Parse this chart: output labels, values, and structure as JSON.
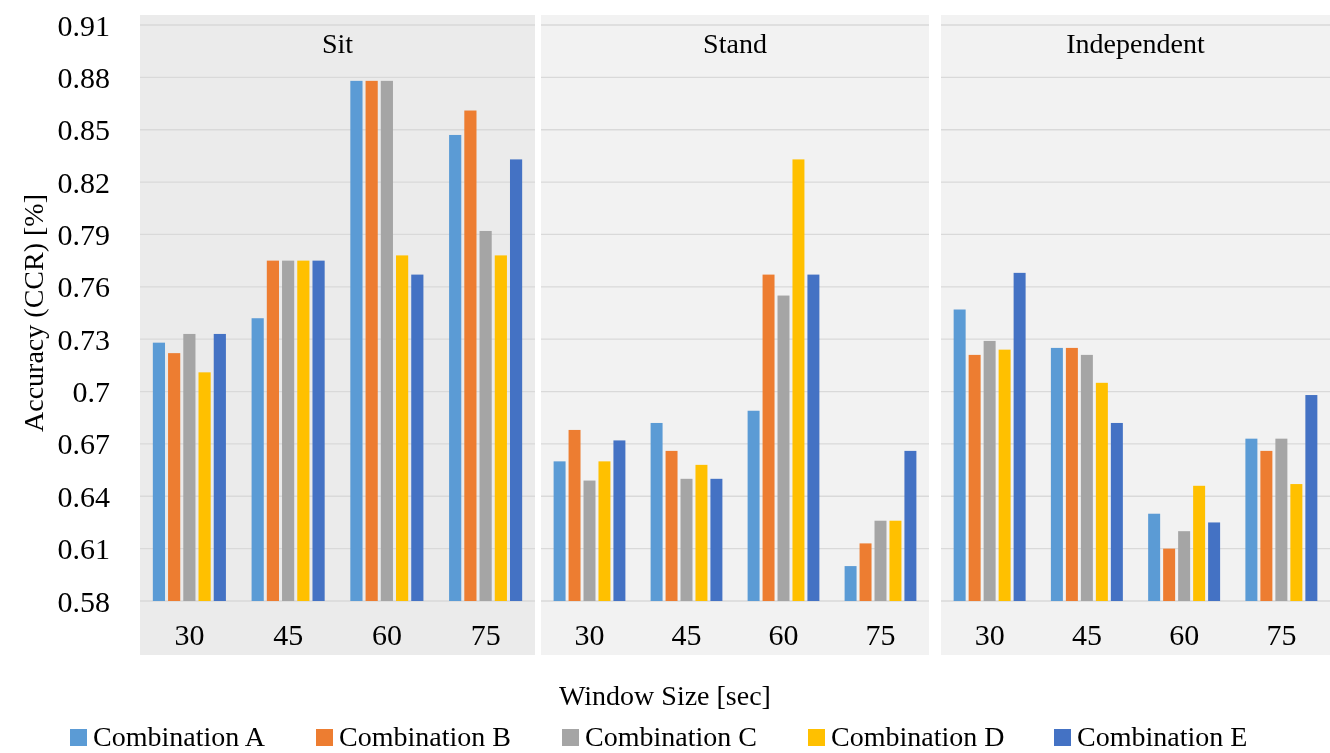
{
  "chart_data": [
    {
      "type": "bar",
      "title": "Sit",
      "ylabel": "Accuracy (CCR) [%]",
      "categories": [
        "30",
        "45",
        "60",
        "75"
      ],
      "ylim": [
        0.58,
        0.91
      ],
      "yticks": [
        0.58,
        0.61,
        0.64,
        0.67,
        0.7,
        0.73,
        0.76,
        0.79,
        0.82,
        0.85,
        0.88,
        0.91
      ],
      "grid": "y",
      "tick_labels": "xy",
      "series": [
        {
          "color": "#5b9bd5",
          "values": [
            0.728,
            0.742,
            0.878,
            0.847
          ]
        },
        {
          "color": "#ed7d31",
          "values": [
            0.722,
            0.775,
            0.878,
            0.861
          ]
        },
        {
          "color": "#a5a5a5",
          "values": [
            0.733,
            0.775,
            0.878,
            0.792
          ]
        },
        {
          "color": "#ffc000",
          "values": [
            0.711,
            0.775,
            0.778,
            0.778
          ]
        },
        {
          "color": "#4472c4",
          "values": [
            0.733,
            0.775,
            0.767,
            0.833
          ]
        }
      ]
    },
    {
      "type": "bar",
      "title": "Stand",
      "xlabel": "Window Size [sec]",
      "categories": [
        "30",
        "45",
        "60",
        "75"
      ],
      "ylim": [
        0.58,
        0.91
      ],
      "yticks": [
        0.58,
        0.61,
        0.64,
        0.67,
        0.7,
        0.73,
        0.76,
        0.79,
        0.82,
        0.85,
        0.88,
        0.91
      ],
      "grid": "y",
      "tick_labels": "x",
      "legend": "bottom",
      "series": [
        {
          "name": "Combination A",
          "color": "#5b9bd5",
          "values": [
            0.66,
            0.682,
            0.689,
            0.6
          ]
        },
        {
          "name": "Combination B",
          "color": "#ed7d31",
          "values": [
            0.678,
            0.666,
            0.767,
            0.613
          ]
        },
        {
          "name": "Combination C",
          "color": "#a5a5a5",
          "values": [
            0.649,
            0.65,
            0.755,
            0.626
          ]
        },
        {
          "name": "Combination D",
          "color": "#ffc000",
          "values": [
            0.66,
            0.658,
            0.833,
            0.626
          ]
        },
        {
          "name": "Combination E",
          "color": "#4472c4",
          "values": [
            0.672,
            0.65,
            0.767,
            0.666
          ]
        }
      ]
    },
    {
      "type": "bar",
      "title": "Independent",
      "categories": [
        "30",
        "45",
        "60",
        "75"
      ],
      "ylim": [
        0.58,
        0.91
      ],
      "yticks": [
        0.58,
        0.61,
        0.64,
        0.67,
        0.7,
        0.73,
        0.76,
        0.79,
        0.82,
        0.85,
        0.88,
        0.91
      ],
      "grid": "y",
      "tick_labels": "x",
      "series": [
        {
          "color": "#5b9bd5",
          "values": [
            0.747,
            0.725,
            0.63,
            0.673
          ]
        },
        {
          "color": "#ed7d31",
          "values": [
            0.721,
            0.725,
            0.61,
            0.666
          ]
        },
        {
          "color": "#a5a5a5",
          "values": [
            0.729,
            0.721,
            0.62,
            0.673
          ]
        },
        {
          "color": "#ffc000",
          "values": [
            0.724,
            0.705,
            0.646,
            0.647
          ]
        },
        {
          "color": "#4472c4",
          "values": [
            0.768,
            0.682,
            0.625,
            0.698
          ]
        }
      ]
    }
  ]
}
